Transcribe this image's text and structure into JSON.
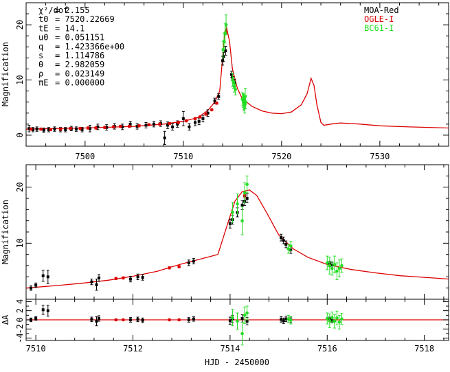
{
  "chart_data": [
    {
      "type": "scatter",
      "panel": "top",
      "ylabel": "Magnification",
      "xlim": [
        7494,
        7537
      ],
      "ylim": [
        -2,
        24
      ],
      "x_ticks": [
        "7500",
        "7510",
        "7520",
        "7530"
      ],
      "y_ticks": [
        "0",
        "10",
        "20"
      ],
      "legend": [
        {
          "name": "MOA-Red",
          "color": "#000000"
        },
        {
          "name": "OGLE-I",
          "color": "#dd0000"
        },
        {
          "name": "BC61-I",
          "color": "#22dd22"
        }
      ],
      "fit_params": [
        {
          "name": "χ²/dof",
          "value": "2.155"
        },
        {
          "name": "t0",
          "value": "7520.22669"
        },
        {
          "name": "tE",
          "value": "14.1"
        },
        {
          "name": "u0",
          "value": "0.051151"
        },
        {
          "name": "q",
          "value": "1.423366e+00"
        },
        {
          "name": "s",
          "value": "1.114786"
        },
        {
          "name": "θ",
          "value": "2.982059"
        },
        {
          "name": "ρ",
          "value": "0.023149"
        },
        {
          "name": "πE",
          "value": "0.000000"
        }
      ],
      "model": {
        "color": "#dd0000",
        "x": [
          7494,
          7500,
          7505,
          7508,
          7510,
          7511.5,
          7512.5,
          7513.2,
          7513.7,
          7514.0,
          7514.2,
          7514.4,
          7514.7,
          7515.0,
          7515.5,
          7516,
          7517,
          7518,
          7519,
          7520,
          7521,
          7522,
          7522.6,
          7523.0,
          7523.3,
          7523.6,
          7524.0,
          7524.3,
          7525,
          7526,
          7528,
          7530,
          7533,
          7537
        ],
        "y": [
          1.1,
          1.3,
          1.6,
          2.0,
          2.5,
          3.2,
          4.5,
          6.0,
          8.0,
          14.0,
          18.5,
          19.5,
          17.0,
          12.0,
          8.5,
          6.6,
          5.2,
          4.4,
          4.0,
          3.9,
          4.2,
          5.5,
          7.5,
          10.3,
          9.0,
          5.5,
          2.3,
          1.8,
          2.0,
          2.2,
          2.0,
          1.7,
          1.5,
          1.3
        ]
      },
      "series": [
        {
          "name": "MOA-Red",
          "color": "#000000",
          "x": [
            7494.3,
            7494.7,
            7495.1,
            7495.8,
            7496.3,
            7496.9,
            7497.5,
            7498.0,
            7498.6,
            7499.1,
            7499.7,
            7500.5,
            7501.3,
            7502.2,
            7503.0,
            7503.8,
            7504.6,
            7505.3,
            7506.2,
            7507.0,
            7507.7,
            7508.1,
            7508.4,
            7508.9,
            7509.4,
            7510.0,
            7510.6,
            7511.2,
            7511.6,
            7512.0,
            7512.5,
            7513.2,
            7513.6,
            7514.0,
            7514.1,
            7514.3,
            7514.9,
            7515.0,
            7515.2
          ],
          "y": [
            1.2,
            1.0,
            1.1,
            0.9,
            1.0,
            1.1,
            1.0,
            1.0,
            1.2,
            1.1,
            1.0,
            1.2,
            1.5,
            1.4,
            1.6,
            1.5,
            2.0,
            1.6,
            1.8,
            2.0,
            2.1,
            -0.5,
            1.8,
            1.5,
            2.0,
            3.0,
            1.5,
            2.3,
            2.5,
            3.0,
            4.0,
            6.2,
            7.0,
            13.5,
            14.2,
            15.3,
            11.0,
            10.5,
            9.5
          ],
          "yerr": [
            0.6,
            0.4,
            0.4,
            0.4,
            0.4,
            0.4,
            0.4,
            0.4,
            0.4,
            0.4,
            0.4,
            0.6,
            0.5,
            0.5,
            0.5,
            0.5,
            0.5,
            0.5,
            0.5,
            0.5,
            0.5,
            1.2,
            0.6,
            0.6,
            0.6,
            1.3,
            0.6,
            0.6,
            0.6,
            0.6,
            0.6,
            0.5,
            0.5,
            0.8,
            0.8,
            0.8,
            0.6,
            0.6,
            0.6
          ]
        },
        {
          "name": "OGLE-I",
          "color": "#dd0000",
          "x": [
            7494.5,
            7495.5,
            7496.5,
            7497.5,
            7498.5,
            7499.5,
            7500.3,
            7501.1,
            7502.0,
            7502.9,
            7503.6,
            7504.5,
            7505.5,
            7506.5,
            7507.6,
            7508.6,
            7509.5,
            7510.3,
            7511.2,
            7511.7,
            7512.3,
            7512.9,
            7513.4,
            7514.35
          ],
          "y": [
            1.1,
            1.1,
            1.0,
            1.1,
            1.2,
            1.2,
            1.3,
            1.3,
            1.4,
            1.5,
            1.6,
            1.6,
            1.7,
            1.9,
            2.0,
            2.1,
            2.3,
            2.6,
            3.0,
            3.3,
            3.8,
            4.6,
            5.8,
            18.8
          ],
          "yerr": [
            0.2,
            0.2,
            0.2,
            0.2,
            0.2,
            0.2,
            0.2,
            0.2,
            0.2,
            0.2,
            0.2,
            0.2,
            0.2,
            0.2,
            0.2,
            0.2,
            0.2,
            0.2,
            0.2,
            0.2,
            0.2,
            0.2,
            0.2,
            0.4
          ]
        },
        {
          "name": "BC61-I",
          "color": "#22dd22",
          "x": [
            7514.05,
            7514.15,
            7514.25,
            7514.35,
            7515.0,
            7515.1,
            7515.2,
            7515.3,
            7516.0,
            7516.1,
            7516.15,
            7516.2,
            7516.25,
            7516.3,
            7516.35
          ],
          "y": [
            15.5,
            17.0,
            18.5,
            20.0,
            10.0,
            9.5,
            8.8,
            8.3,
            6.5,
            6.2,
            6.0,
            5.8,
            5.5,
            7.0,
            6.0
          ],
          "yerr": [
            1.5,
            1.5,
            1.8,
            1.8,
            1.2,
            1.0,
            1.0,
            1.0,
            1.2,
            1.2,
            1.5,
            1.2,
            1.5,
            1.5,
            1.2
          ]
        }
      ]
    },
    {
      "type": "scatter",
      "panel": "zoom",
      "ylabel": "Magnification",
      "xlim": [
        7509.8,
        7518.5
      ],
      "ylim": [
        0,
        24
      ],
      "y_ticks": [
        "10",
        "20"
      ],
      "model": {
        "color": "#dd0000",
        "x": [
          7509.8,
          7510.5,
          7511.0,
          7511.5,
          7512.0,
          7512.5,
          7513.0,
          7513.4,
          7513.75,
          7513.95,
          7514.1,
          7514.25,
          7514.4,
          7514.55,
          7514.75,
          7515.0,
          7515.3,
          7515.6,
          7516.0,
          7516.5,
          7517.0,
          7517.5,
          7518.0,
          7518.5
        ],
        "y": [
          2.0,
          2.5,
          2.9,
          3.4,
          4.1,
          5.0,
          6.3,
          7.2,
          8.0,
          13.5,
          17.5,
          19.2,
          19.5,
          18.5,
          15.5,
          11.5,
          9.0,
          7.5,
          6.2,
          5.3,
          4.7,
          4.2,
          3.9,
          3.6
        ]
      },
      "series": [
        {
          "name": "MOA-Red",
          "color": "#000000",
          "x": [
            7509.9,
            7510.0,
            7510.15,
            7510.25,
            7511.15,
            7511.25,
            7511.3,
            7511.95,
            7512.1,
            7512.2,
            7513.15,
            7513.25,
            7514.0,
            7514.05,
            7514.15,
            7514.25,
            7514.3,
            7514.35,
            7515.05,
            7515.1,
            7515.15,
            7515.25,
            7516.05,
            7516.1
          ],
          "y": [
            2.0,
            2.5,
            4.2,
            4.0,
            3.1,
            2.6,
            3.8,
            3.6,
            4.0,
            3.9,
            6.5,
            6.8,
            13.5,
            14.2,
            15.5,
            16.8,
            17.5,
            18.0,
            11.0,
            10.5,
            9.8,
            8.8,
            6.3,
            6.1
          ],
          "yerr": [
            0.4,
            0.4,
            1.0,
            1.2,
            0.5,
            1.0,
            0.6,
            0.5,
            0.5,
            0.5,
            0.5,
            0.5,
            0.8,
            0.8,
            0.8,
            0.8,
            0.8,
            0.8,
            0.6,
            0.6,
            0.6,
            0.6,
            0.5,
            0.5
          ]
        },
        {
          "name": "OGLE-I",
          "color": "#dd0000",
          "x": [
            7511.65,
            7511.8,
            7512.75,
            7512.95,
            7514.3
          ],
          "y": [
            3.7,
            3.8,
            5.6,
            5.8,
            18.5
          ],
          "yerr": [
            0.2,
            0.2,
            0.2,
            0.2,
            0.4
          ]
        },
        {
          "name": "BC61-I",
          "color": "#22dd22",
          "x": [
            7514.05,
            7514.15,
            7514.25,
            7514.3,
            7514.35,
            7515.2,
            7515.25,
            7516.0,
            7516.05,
            7516.1,
            7516.15,
            7516.2,
            7516.25,
            7516.3
          ],
          "y": [
            15.5,
            17.0,
            14.0,
            19.0,
            20.5,
            9.0,
            9.5,
            6.5,
            6.0,
            5.5,
            6.2,
            5.0,
            5.5,
            6.0
          ],
          "yerr": [
            1.8,
            1.8,
            2.5,
            1.8,
            1.5,
            0.8,
            0.8,
            1.2,
            1.5,
            1.2,
            1.5,
            1.5,
            1.5,
            1.2
          ]
        }
      ]
    },
    {
      "type": "scatter",
      "panel": "residuals",
      "ylabel": "ΔA",
      "xlabel": "HJD - 2450000",
      "xlim": [
        7509.8,
        7518.5
      ],
      "ylim": [
        -4.5,
        4.5
      ],
      "x_ticks": [
        "7510",
        "7512",
        "7514",
        "7516",
        "7518"
      ],
      "y_ticks": [
        "-4",
        "-2",
        "0",
        "2",
        "4"
      ],
      "series": [
        {
          "name": "MOA-Red",
          "color": "#000000",
          "x": [
            7509.9,
            7510.0,
            7510.15,
            7510.25,
            7511.15,
            7511.25,
            7511.3,
            7511.95,
            7512.1,
            7512.2,
            7513.15,
            7513.25,
            7514.0,
            7514.05,
            7514.25,
            7514.35,
            7515.05,
            7515.1,
            7515.15,
            7515.25,
            7516.05,
            7516.1
          ],
          "y": [
            0.0,
            0.3,
            2.2,
            2.0,
            0.1,
            -0.3,
            0.3,
            0.0,
            0.1,
            -0.1,
            0.0,
            0.2,
            -0.2,
            0.2,
            0.3,
            -0.3,
            0.1,
            -0.2,
            0.2,
            0.0,
            0.1,
            -0.1
          ],
          "yerr": [
            0.4,
            0.4,
            1.0,
            1.2,
            0.5,
            1.0,
            0.6,
            0.5,
            0.5,
            0.5,
            0.5,
            0.5,
            0.8,
            0.8,
            0.8,
            0.8,
            0.6,
            0.6,
            0.6,
            0.6,
            0.5,
            0.5
          ]
        },
        {
          "name": "OGLE-I",
          "color": "#dd0000",
          "x": [
            7511.65,
            7511.8,
            7512.75,
            7512.95
          ],
          "y": [
            0.0,
            0.0,
            0.0,
            0.0
          ],
          "yerr": [
            0.2,
            0.2,
            0.2,
            0.2
          ]
        },
        {
          "name": "BC61-I",
          "color": "#22dd22",
          "x": [
            7514.05,
            7514.15,
            7514.25,
            7514.3,
            7514.35,
            7515.2,
            7515.25,
            7516.0,
            7516.05,
            7516.1,
            7516.15,
            7516.2,
            7516.25,
            7516.3
          ],
          "y": [
            0.5,
            -0.3,
            -3.0,
            1.0,
            1.5,
            0.2,
            -0.1,
            0.3,
            -0.2,
            0.5,
            -0.3,
            0.4,
            -0.5,
            0.2
          ],
          "yerr": [
            1.8,
            1.8,
            2.5,
            1.8,
            1.5,
            0.8,
            0.8,
            1.2,
            1.5,
            1.2,
            1.5,
            1.5,
            1.5,
            1.2
          ]
        }
      ]
    }
  ]
}
